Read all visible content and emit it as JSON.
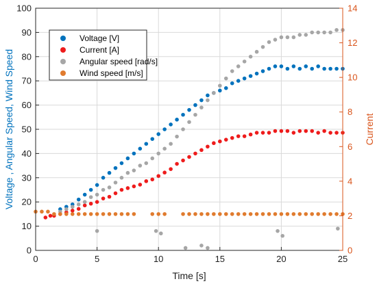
{
  "chart_data": {
    "type": "scatter",
    "title": "",
    "xlabel": "Time [s]",
    "ylabel_left": "Voltage , Angular Speed, Wind Speed",
    "ylabel_right": "Current",
    "xlim": [
      0,
      25
    ],
    "ylim_left": [
      0,
      100
    ],
    "ylim_right": [
      0,
      14
    ],
    "x_ticks": [
      0,
      5,
      10,
      15,
      20,
      25
    ],
    "y_left_ticks": [
      0,
      10,
      20,
      30,
      40,
      50,
      60,
      70,
      80,
      90,
      100
    ],
    "y_right_ticks": [
      0,
      2,
      4,
      6,
      8,
      10,
      12,
      14
    ],
    "grid": true,
    "legend_position": "upper-left",
    "colors": {
      "left_axis": "#0072bd",
      "right_axis": "#d95319",
      "grid": "#d9d9d9"
    },
    "series": [
      {
        "name": "Voltage [V]",
        "axis": "left",
        "color": "#0072bd",
        "points": [
          [
            2.0,
            17
          ],
          [
            2.5,
            18
          ],
          [
            3.0,
            19
          ],
          [
            3.5,
            21
          ],
          [
            4.0,
            23
          ],
          [
            4.5,
            25
          ],
          [
            5.0,
            27
          ],
          [
            5.5,
            30
          ],
          [
            6.0,
            32
          ],
          [
            6.5,
            34
          ],
          [
            7.0,
            36
          ],
          [
            7.5,
            38
          ],
          [
            8.0,
            40
          ],
          [
            8.5,
            42
          ],
          [
            9.0,
            44
          ],
          [
            9.5,
            46
          ],
          [
            10.0,
            48
          ],
          [
            10.5,
            50
          ],
          [
            11.0,
            52
          ],
          [
            11.5,
            54
          ],
          [
            12.0,
            56
          ],
          [
            12.5,
            58
          ],
          [
            13.0,
            60
          ],
          [
            13.5,
            62
          ],
          [
            14.0,
            64
          ],
          [
            14.5,
            65
          ],
          [
            15.0,
            66
          ],
          [
            15.5,
            67
          ],
          [
            16.0,
            69
          ],
          [
            16.5,
            70
          ],
          [
            17.0,
            71
          ],
          [
            17.5,
            72
          ],
          [
            18.0,
            73
          ],
          [
            18.5,
            74
          ],
          [
            19.0,
            75
          ],
          [
            19.5,
            76
          ],
          [
            20.0,
            76
          ],
          [
            20.5,
            75
          ],
          [
            21.0,
            76
          ],
          [
            21.5,
            75
          ],
          [
            22.0,
            76
          ],
          [
            22.5,
            75
          ],
          [
            23.0,
            76
          ],
          [
            23.5,
            75
          ],
          [
            24.0,
            75
          ],
          [
            24.5,
            75
          ],
          [
            25.0,
            75
          ]
        ]
      },
      {
        "name": "Current [A]",
        "axis": "right",
        "color": "#ee1c1c",
        "points": [
          [
            0.8,
            1.9
          ],
          [
            1.2,
            2.0
          ],
          [
            1.5,
            2.0
          ],
          [
            2.0,
            2.1
          ],
          [
            2.5,
            2.2
          ],
          [
            3.0,
            2.3
          ],
          [
            3.5,
            2.4
          ],
          [
            4.0,
            2.6
          ],
          [
            4.5,
            2.7
          ],
          [
            5.0,
            2.8
          ],
          [
            5.5,
            3.0
          ],
          [
            6.0,
            3.1
          ],
          [
            6.5,
            3.3
          ],
          [
            7.0,
            3.5
          ],
          [
            7.5,
            3.6
          ],
          [
            8.0,
            3.7
          ],
          [
            8.5,
            3.8
          ],
          [
            9.0,
            4.0
          ],
          [
            9.5,
            4.1
          ],
          [
            10.0,
            4.3
          ],
          [
            10.5,
            4.5
          ],
          [
            11.0,
            4.7
          ],
          [
            11.5,
            5.0
          ],
          [
            12.0,
            5.2
          ],
          [
            12.5,
            5.4
          ],
          [
            13.0,
            5.6
          ],
          [
            13.5,
            5.8
          ],
          [
            14.0,
            6.0
          ],
          [
            14.5,
            6.2
          ],
          [
            15.0,
            6.3
          ],
          [
            15.5,
            6.4
          ],
          [
            16.0,
            6.5
          ],
          [
            16.5,
            6.6
          ],
          [
            17.0,
            6.6
          ],
          [
            17.5,
            6.7
          ],
          [
            18.0,
            6.8
          ],
          [
            18.5,
            6.8
          ],
          [
            19.0,
            6.8
          ],
          [
            19.5,
            6.9
          ],
          [
            20.0,
            6.9
          ],
          [
            20.5,
            6.9
          ],
          [
            21.0,
            6.8
          ],
          [
            21.5,
            6.9
          ],
          [
            22.0,
            6.9
          ],
          [
            22.5,
            6.9
          ],
          [
            23.0,
            6.8
          ],
          [
            23.5,
            6.9
          ],
          [
            24.0,
            6.8
          ],
          [
            24.5,
            6.8
          ],
          [
            25.0,
            6.8
          ]
        ]
      },
      {
        "name": "Angular speed [rad/s]",
        "axis": "left",
        "color": "#a6a6a6",
        "points": [
          [
            2.0,
            16
          ],
          [
            2.5,
            17
          ],
          [
            3.0,
            18
          ],
          [
            3.5,
            19
          ],
          [
            4.0,
            20
          ],
          [
            4.5,
            22
          ],
          [
            5.0,
            23
          ],
          [
            5.5,
            25
          ],
          [
            6.0,
            26
          ],
          [
            6.5,
            28
          ],
          [
            7.0,
            30
          ],
          [
            7.5,
            32
          ],
          [
            8.0,
            33
          ],
          [
            8.5,
            35
          ],
          [
            9.0,
            36
          ],
          [
            9.5,
            38
          ],
          [
            10.0,
            40
          ],
          [
            10.5,
            42
          ],
          [
            11.0,
            44
          ],
          [
            11.5,
            47
          ],
          [
            12.0,
            50
          ],
          [
            12.5,
            53
          ],
          [
            13.0,
            56
          ],
          [
            13.5,
            59
          ],
          [
            14.0,
            62
          ],
          [
            14.5,
            65
          ],
          [
            15.0,
            68
          ],
          [
            15.5,
            71
          ],
          [
            16.0,
            74
          ],
          [
            16.5,
            76
          ],
          [
            17.0,
            78
          ],
          [
            17.5,
            80
          ],
          [
            18.0,
            82
          ],
          [
            18.5,
            84
          ],
          [
            19.0,
            86
          ],
          [
            19.5,
            87
          ],
          [
            20.0,
            88
          ],
          [
            20.5,
            88
          ],
          [
            21.0,
            88
          ],
          [
            21.5,
            89
          ],
          [
            22.0,
            89
          ],
          [
            22.5,
            90
          ],
          [
            23.0,
            90
          ],
          [
            23.5,
            90
          ],
          [
            24.0,
            90
          ],
          [
            24.5,
            91
          ],
          [
            25.0,
            91
          ],
          [
            5.0,
            8
          ],
          [
            9.8,
            8
          ],
          [
            10.2,
            7
          ],
          [
            12.2,
            1
          ],
          [
            13.5,
            2
          ],
          [
            14.0,
            1
          ],
          [
            19.7,
            8
          ],
          [
            20.1,
            6
          ],
          [
            24.6,
            9
          ]
        ]
      },
      {
        "name": "Wind speed [m/s]",
        "axis": "left",
        "color": "#e07b2e",
        "points": [
          [
            0.0,
            16
          ],
          [
            0.5,
            16
          ],
          [
            1.0,
            16
          ],
          [
            1.5,
            15
          ],
          [
            2.0,
            15
          ],
          [
            2.5,
            15
          ],
          [
            3.0,
            15
          ],
          [
            3.5,
            15
          ],
          [
            4.0,
            15
          ],
          [
            4.5,
            15
          ],
          [
            5.0,
            15
          ],
          [
            5.5,
            15
          ],
          [
            6.0,
            15
          ],
          [
            6.5,
            15
          ],
          [
            7.0,
            15
          ],
          [
            7.5,
            15
          ],
          [
            8.0,
            15
          ],
          [
            9.5,
            15
          ],
          [
            10.0,
            15
          ],
          [
            10.5,
            15
          ],
          [
            12.0,
            15
          ],
          [
            12.5,
            15
          ],
          [
            13.0,
            15
          ],
          [
            13.5,
            15
          ],
          [
            14.0,
            15
          ],
          [
            14.5,
            15
          ],
          [
            15.0,
            15
          ],
          [
            15.5,
            15
          ],
          [
            16.0,
            15
          ],
          [
            16.5,
            15
          ],
          [
            17.0,
            15
          ],
          [
            17.5,
            15
          ],
          [
            18.0,
            15
          ],
          [
            18.5,
            15
          ],
          [
            19.0,
            15
          ],
          [
            19.5,
            15
          ],
          [
            20.0,
            15
          ],
          [
            20.5,
            15
          ],
          [
            21.0,
            15
          ],
          [
            21.5,
            15
          ],
          [
            22.0,
            15
          ],
          [
            22.5,
            15
          ],
          [
            23.0,
            15
          ],
          [
            23.5,
            15
          ],
          [
            24.0,
            15
          ],
          [
            24.5,
            15
          ],
          [
            25.0,
            15
          ]
        ]
      }
    ]
  }
}
